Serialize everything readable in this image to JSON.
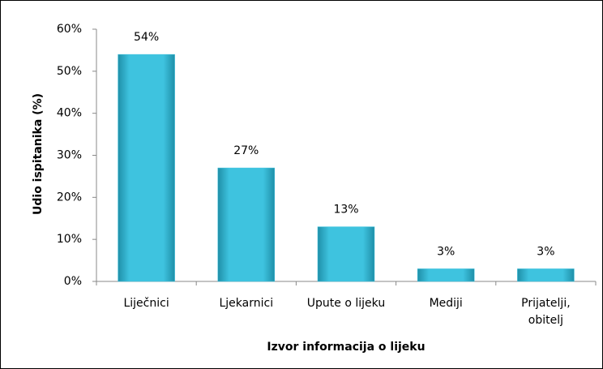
{
  "chart_data": {
    "type": "bar",
    "xlabel": "Izvor informacija o lijeku",
    "ylabel": "Udio ispitanika (%)",
    "categories": [
      "Liječnici",
      "Ljekarnici",
      "Upute o lijeku",
      "Mediji",
      "Prijatelji, obitelj"
    ],
    "values": [
      54,
      27,
      13,
      3,
      3
    ],
    "value_labels": [
      "54%",
      "27%",
      "13%",
      "3%",
      "3%"
    ],
    "color": "#3ec3df",
    "ylim": [
      0,
      60
    ],
    "yticks": [
      {
        "value": 0,
        "label": "0%"
      },
      {
        "value": 10,
        "label": "10%"
      },
      {
        "value": 20,
        "label": "20%"
      },
      {
        "value": 30,
        "label": "30%"
      },
      {
        "value": 40,
        "label": "40%"
      },
      {
        "value": 50,
        "label": "50%"
      },
      {
        "value": 60,
        "label": "60%"
      }
    ],
    "grid": false
  }
}
